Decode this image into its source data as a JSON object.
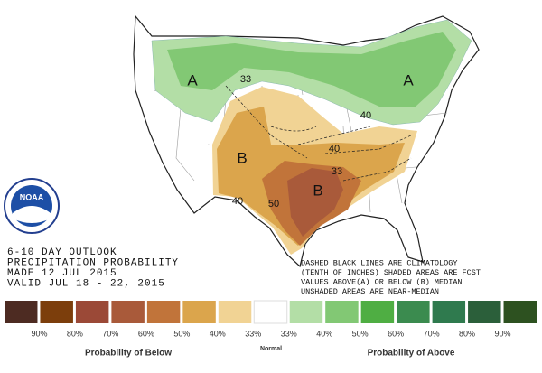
{
  "outlook": {
    "title_lines": [
      "6-10 DAY OUTLOOK",
      "PRECIPITATION PROBABILITY",
      "MADE  12 JUL 2015",
      "VALID  JUL 18 - 22, 2015"
    ],
    "note_lines": [
      "DASHED BLACK LINES ARE CLIMATOLOGY",
      "(TENTH OF INCHES) SHADED AREAS ARE FCST",
      "VALUES ABOVE(A) OR BELOW (B) MEDIAN",
      "UNSHADED AREAS ARE NEAR-MEDIAN"
    ],
    "map_labels": [
      "A",
      "A",
      "B",
      "B",
      "33",
      "40",
      "40",
      "33",
      "40",
      "50"
    ],
    "logo_text": "NOAA"
  },
  "legend": {
    "colors": [
      "#4d2b22",
      "#7c3e0c",
      "#9b4937",
      "#a95a3a",
      "#c1743a",
      "#dba54c",
      "#f1d394",
      "#ffffff",
      "#b3dea6",
      "#82c874",
      "#4fae43",
      "#3b8b4f",
      "#2f7a4e",
      "#2b5f3a",
      "#2d5120"
    ],
    "labels": [
      "90%",
      "80%",
      "70%",
      "60%",
      "50%",
      "40%",
      "33%",
      "33%",
      "40%",
      "50%",
      "60%",
      "70%",
      "80%",
      "90%"
    ],
    "below_title": "Probability of Below",
    "normal_label": "Normal",
    "above_title": "Probability of Above"
  }
}
